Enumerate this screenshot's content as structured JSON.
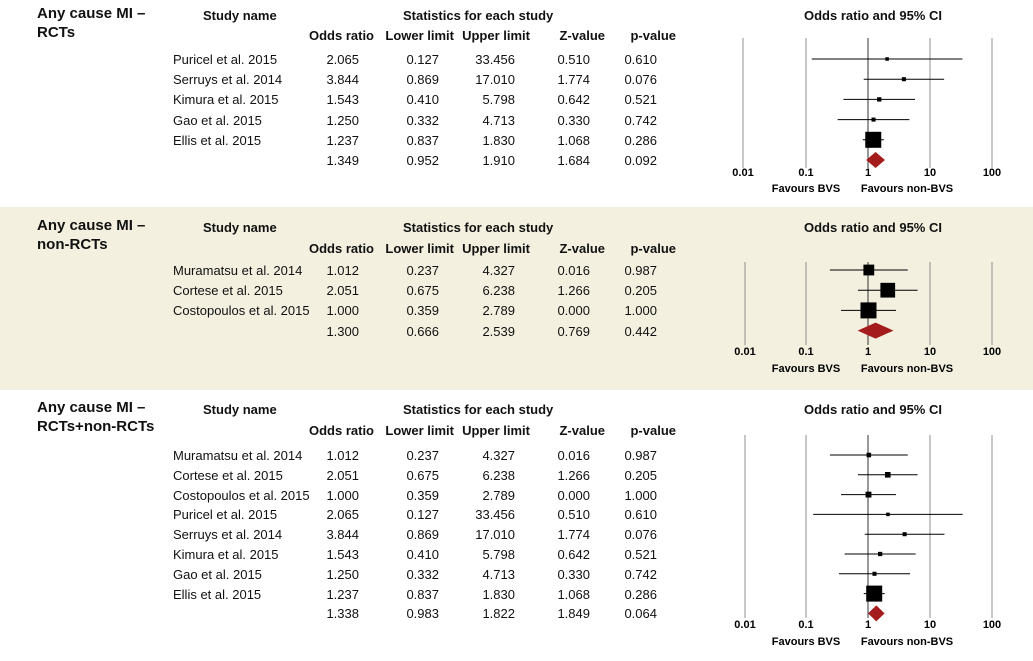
{
  "columns": {
    "study_name": "Study name",
    "stats_header": "Statistics for each study",
    "odds_ratio": "Odds ratio",
    "lower_limit": "Lower limit",
    "upper_limit": "Upper limit",
    "z_value": "Z-value",
    "p_value": "p-value",
    "plot_header": "Odds ratio and 95% CI"
  },
  "colors": {
    "panel_bg_alt": "#f3f0df",
    "summary": "#a51c1c",
    "marker": "#000000",
    "gridline": "#555555"
  },
  "chart_data": [
    {
      "type": "forest",
      "title_line1": "Any cause MI –",
      "title_line2": "RCTs",
      "x_scale": "log",
      "xlim": [
        0.01,
        100
      ],
      "ticks": [
        "0.01",
        "0.1",
        "1",
        "10",
        "100"
      ],
      "xlabel_left": "Favours BVS",
      "xlabel_right": "Favours non-BVS",
      "rows": [
        {
          "study": "Puricel et al. 2015",
          "or": "2.065",
          "lower": "0.127",
          "upper": "33.456",
          "z": "0.510",
          "p": "0.610",
          "weight": 0.04
        },
        {
          "study": "Serruys et al. 2014",
          "or": "3.844",
          "lower": "0.869",
          "upper": "17.010",
          "z": "1.774",
          "p": "0.076",
          "weight": 0.08
        },
        {
          "study": "Kimura et al. 2015",
          "or": "1.543",
          "lower": "0.410",
          "upper": "5.798",
          "z": "0.642",
          "p": "0.521",
          "weight": 0.1
        },
        {
          "study": "Gao et al. 2015",
          "or": "1.250",
          "lower": "0.332",
          "upper": "4.713",
          "z": "0.330",
          "p": "0.742",
          "weight": 0.08
        },
        {
          "study": "Ellis et al. 2015",
          "or": "1.237",
          "lower": "0.837",
          "upper": "1.830",
          "z": "1.068",
          "p": "0.286",
          "weight": 1.0
        }
      ],
      "summary": {
        "or": "1.349",
        "lower": "0.952",
        "upper": "1.910",
        "z": "1.684",
        "p": "0.092"
      }
    },
    {
      "type": "forest",
      "title_line1": "Any cause MI –",
      "title_line2": "non-RCTs",
      "x_scale": "log",
      "xlim": [
        0.01,
        100
      ],
      "ticks": [
        "0.01",
        "0.1",
        "1",
        "10",
        "100"
      ],
      "xlabel_left": "Favours BVS",
      "xlabel_right": "Favours non-BVS",
      "rows": [
        {
          "study": "Muramatsu et al. 2014",
          "or": "1.012",
          "lower": "0.237",
          "upper": "4.327",
          "z": "0.016",
          "p": "0.987",
          "weight": 0.6
        },
        {
          "study": "Cortese et al. 2015",
          "or": "2.051",
          "lower": "0.675",
          "upper": "6.238",
          "z": "1.266",
          "p": "0.205",
          "weight": 0.9
        },
        {
          "study": "Costopoulos et al. 2015",
          "or": "1.000",
          "lower": "0.359",
          "upper": "2.789",
          "z": "0.000",
          "p": "1.000",
          "weight": 1.0
        }
      ],
      "summary": {
        "or": "1.300",
        "lower": "0.666",
        "upper": "2.539",
        "z": "0.769",
        "p": "0.442"
      }
    },
    {
      "type": "forest",
      "title_line1": "Any cause MI –",
      "title_line2": "RCTs+non-RCTs",
      "x_scale": "log",
      "xlim": [
        0.01,
        100
      ],
      "ticks": [
        "0.01",
        "0.1",
        "1",
        "10",
        "100"
      ],
      "xlabel_left": "Favours BVS",
      "xlabel_right": "Favours non-BVS",
      "rows": [
        {
          "study": "Muramatsu et al. 2014",
          "or": "1.012",
          "lower": "0.237",
          "upper": "4.327",
          "z": "0.016",
          "p": "0.987",
          "weight": 0.12
        },
        {
          "study": "Cortese et al. 2015",
          "or": "2.051",
          "lower": "0.675",
          "upper": "6.238",
          "z": "1.266",
          "p": "0.205",
          "weight": 0.2
        },
        {
          "study": "Costopoulos et al. 2015",
          "or": "1.000",
          "lower": "0.359",
          "upper": "2.789",
          "z": "0.000",
          "p": "1.000",
          "weight": 0.22
        },
        {
          "study": "Puricel et al. 2015",
          "or": "2.065",
          "lower": "0.127",
          "upper": "33.456",
          "z": "0.510",
          "p": "0.610",
          "weight": 0.04
        },
        {
          "study": "Serruys et al. 2014",
          "or": "3.844",
          "lower": "0.869",
          "upper": "17.010",
          "z": "1.774",
          "p": "0.076",
          "weight": 0.08
        },
        {
          "study": "Kimura et al. 2015",
          "or": "1.543",
          "lower": "0.410",
          "upper": "5.798",
          "z": "0.642",
          "p": "0.521",
          "weight": 0.1
        },
        {
          "study": "Gao et al. 2015",
          "or": "1.250",
          "lower": "0.332",
          "upper": "4.713",
          "z": "0.330",
          "p": "0.742",
          "weight": 0.08
        },
        {
          "study": "Ellis et al. 2015",
          "or": "1.237",
          "lower": "0.837",
          "upper": "1.830",
          "z": "1.068",
          "p": "0.286",
          "weight": 1.0
        }
      ],
      "summary": {
        "or": "1.338",
        "lower": "0.983",
        "upper": "1.822",
        "z": "1.849",
        "p": "0.064"
      }
    }
  ]
}
